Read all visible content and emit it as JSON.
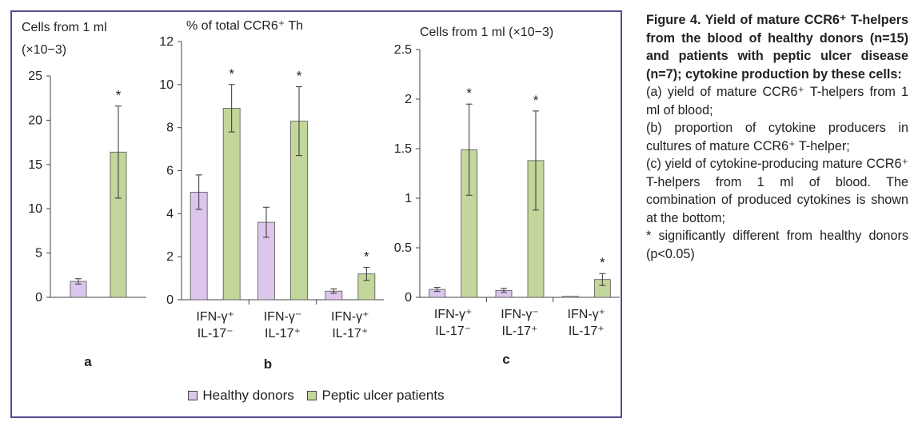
{
  "colors": {
    "healthy": "#dcc6ec",
    "ulcer": "#c3d69b",
    "border": "#5b4a8f"
  },
  "legend": {
    "healthy": "Healthy donors",
    "ulcer": "Peptic ulcer patients"
  },
  "caption": {
    "title": "Figure 4. Yield of mature CCR6⁺ T-helpers from the blood of healthy donors (n=15) and patients with peptic ulcer disease (n=7); cytokine production by these cells:",
    "lines": [
      "(a) yield of mature CCR6⁺ T-helpers from 1 ml of blood;",
      "(b) proportion of cytokine producers in cultures of mature CCR6⁺ T-helper;",
      "(c) yield of cytokine-producing mature CCR6⁺ T-helpers from 1 ml of blood. The combination of produced cytokines is shown at the bottom;",
      "* significantly different from healthy donors (p<0.05)"
    ]
  },
  "chart_data": [
    {
      "type": "bar",
      "panel_label": "a",
      "ylabel": "Cells from 1 ml",
      "ylabel2": "(×10−3)",
      "ylim": [
        0,
        25
      ],
      "yticks": [
        0,
        5,
        10,
        15,
        20,
        25
      ],
      "categories": [
        ""
      ],
      "series": [
        {
          "name": "Healthy donors",
          "values": [
            1.8
          ],
          "errors": [
            0.3
          ],
          "star": [
            false
          ]
        },
        {
          "name": "Peptic ulcer patients",
          "values": [
            16.4
          ],
          "errors": [
            5.2
          ],
          "star": [
            true
          ]
        }
      ]
    },
    {
      "type": "bar",
      "panel_label": "b",
      "ylabel": "% of total CCR6⁺ Th",
      "ylim": [
        0,
        12
      ],
      "yticks": [
        0,
        2,
        4,
        6,
        8,
        10,
        12
      ],
      "categories": [
        [
          "IFN-γ⁺",
          "IL-17⁻"
        ],
        [
          "IFN-γ⁻",
          "IL-17⁺"
        ],
        [
          "IFN-γ⁺",
          "IL-17⁺"
        ]
      ],
      "series": [
        {
          "name": "Healthy donors",
          "values": [
            5.0,
            3.6,
            0.4
          ],
          "errors": [
            0.8,
            0.7,
            0.1
          ],
          "star": [
            false,
            false,
            false
          ]
        },
        {
          "name": "Peptic ulcer patients",
          "values": [
            8.9,
            8.3,
            1.2
          ],
          "errors": [
            1.1,
            1.6,
            0.3
          ],
          "star": [
            true,
            true,
            true
          ]
        }
      ]
    },
    {
      "type": "bar",
      "panel_label": "c",
      "ylabel": "Cells from 1 ml (×10−3)",
      "ylim": [
        0,
        2.5
      ],
      "yticks": [
        0,
        0.5,
        1,
        1.5,
        2,
        2.5
      ],
      "categories": [
        [
          "IFN-γ⁺",
          "IL-17⁻"
        ],
        [
          "IFN-γ⁻",
          "IL-17⁺"
        ],
        [
          "IFN-γ⁺",
          "IL-17⁺"
        ]
      ],
      "series": [
        {
          "name": "Healthy donors",
          "values": [
            0.08,
            0.07,
            0.01
          ],
          "errors": [
            0.02,
            0.02,
            0.0
          ],
          "star": [
            false,
            false,
            false
          ]
        },
        {
          "name": "Peptic ulcer patients",
          "values": [
            1.49,
            1.38,
            0.18
          ],
          "errors": [
            0.46,
            0.5,
            0.06
          ],
          "star": [
            true,
            true,
            true
          ]
        }
      ]
    }
  ]
}
